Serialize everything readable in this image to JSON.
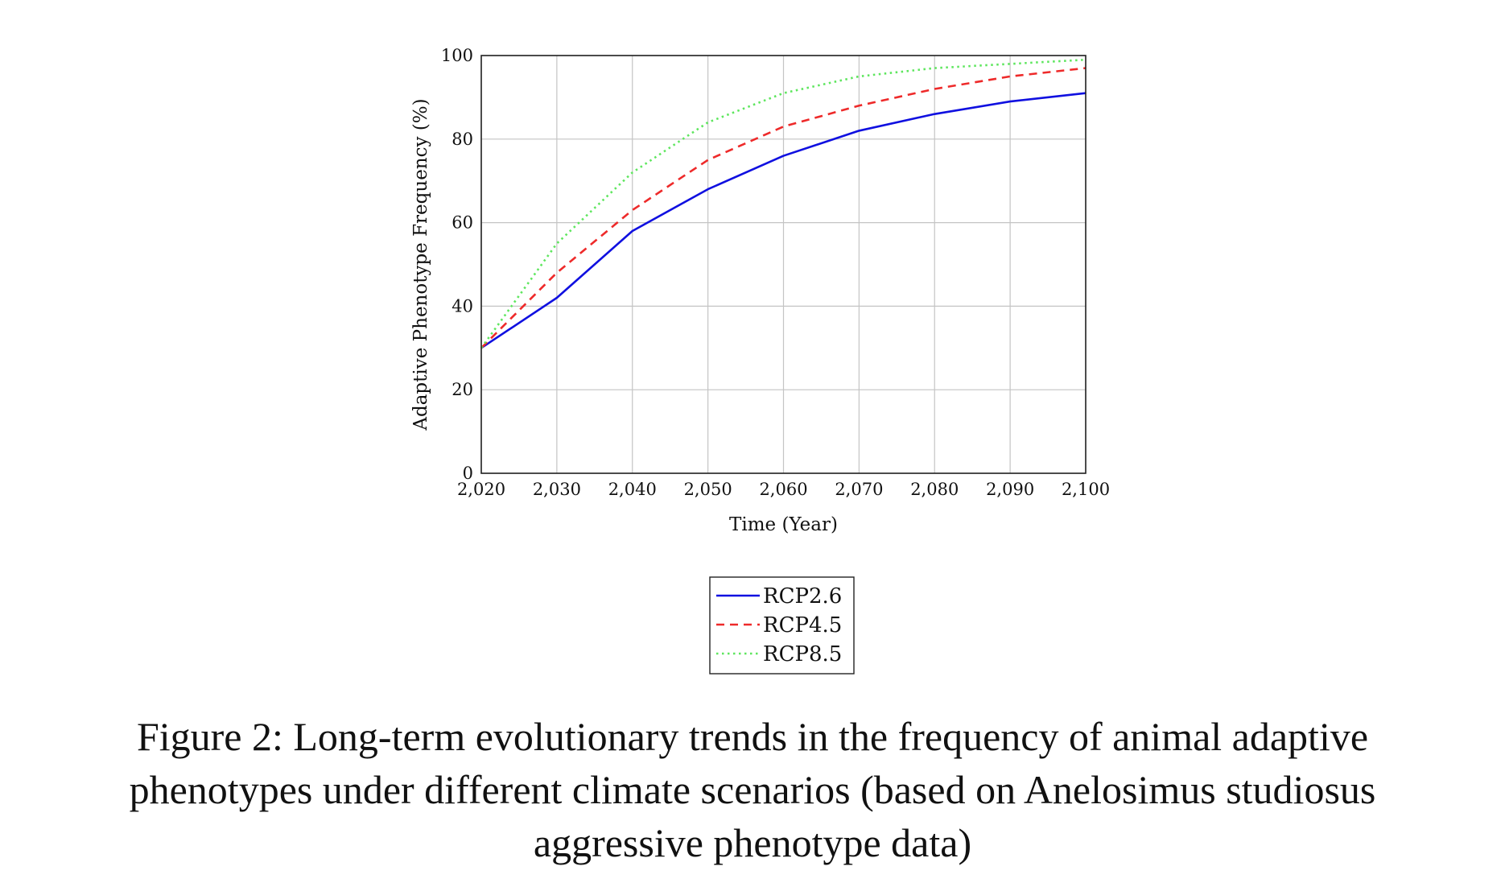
{
  "chart_data": {
    "type": "line",
    "xlabel": "Time (Year)",
    "ylabel": "Adaptive Phenotype Frequency (%)",
    "xlim": [
      2020,
      2100
    ],
    "ylim": [
      0,
      100
    ],
    "xticks": [
      2020,
      2030,
      2040,
      2050,
      2060,
      2070,
      2080,
      2090,
      2100
    ],
    "xtick_labels": [
      "2,020",
      "2,030",
      "2,040",
      "2,050",
      "2,060",
      "2,070",
      "2,080",
      "2,090",
      "2,100"
    ],
    "yticks": [
      0,
      20,
      40,
      60,
      80,
      100
    ],
    "ytick_labels": [
      "0",
      "20",
      "40",
      "60",
      "80",
      "100"
    ],
    "grid": true,
    "legend_position": "bottom-center (below plot)",
    "x": [
      2020,
      2030,
      2040,
      2050,
      2060,
      2070,
      2080,
      2090,
      2100
    ],
    "series": [
      {
        "name": "RCP2.6",
        "color": "#1010e0",
        "style": "solid",
        "values": [
          30,
          42,
          58,
          68,
          76,
          82,
          86,
          89,
          91
        ]
      },
      {
        "name": "RCP4.5",
        "color": "#ee2a2a",
        "style": "dashed",
        "values": [
          30,
          48,
          63,
          75,
          83,
          88,
          92,
          95,
          97
        ]
      },
      {
        "name": "RCP8.5",
        "color": "#5ee65e",
        "style": "dotted",
        "values": [
          30,
          55,
          72,
          84,
          91,
          95,
          97,
          98,
          99
        ]
      }
    ]
  },
  "caption": "Figure 2: Long-term evolutionary trends in the frequency of animal adaptive phenotypes under different climate scenarios (based on Anelosimus studiosus aggressive phenotype data)"
}
